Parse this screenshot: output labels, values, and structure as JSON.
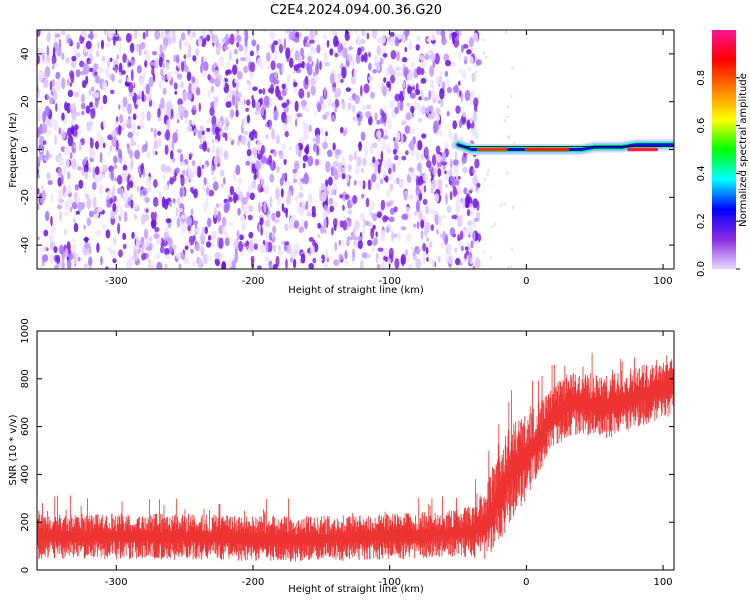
{
  "title": "C2E4.2024.094.00.36.G20",
  "chart_data": [
    {
      "type": "heatmap",
      "xlabel": "Height of straight line (km)",
      "ylabel": "Frequency (Hz)",
      "xlim": [
        -358,
        108
      ],
      "ylim": [
        -50,
        50
      ],
      "x_ticks": [
        -300,
        -200,
        -100,
        0,
        100
      ],
      "y_ticks": [
        -40,
        -20,
        0,
        20,
        40
      ],
      "colorbar": {
        "label": "Normalized spectral amplitude",
        "range": [
          0,
          1
        ],
        "ticks": [
          "0.0",
          "0.2",
          "0.4",
          "0.6",
          "0.8"
        ],
        "colormap": [
          "#e8d8ff",
          "#8a2be2",
          "#0000ff",
          "#00ffff",
          "#00ff00",
          "#ffff00",
          "#ff7f00",
          "#ff0000",
          "#ff1493"
        ]
      },
      "noise_region_x": [
        -358,
        -45
      ],
      "signal_line": {
        "x": [
          -50,
          -40,
          -30,
          -20,
          -10,
          0,
          10,
          20,
          30,
          40,
          50,
          60,
          70,
          80,
          90,
          100,
          108
        ],
        "freq_hz": [
          2,
          0,
          0,
          0,
          0,
          0,
          0,
          0,
          0,
          0,
          1,
          1,
          1,
          2,
          2,
          2,
          2
        ]
      }
    },
    {
      "type": "line",
      "xlabel": "Height of straight line (km)",
      "ylabel": "SNR (10 * v/v)",
      "xlim": [
        -358,
        108
      ],
      "ylim": [
        0,
        1000
      ],
      "x_ticks": [
        -300,
        -200,
        -100,
        0,
        100
      ],
      "y_ticks": [
        0,
        200,
        400,
        600,
        800,
        1000
      ],
      "series": [
        {
          "color": "#ee3333",
          "x": [
            -358,
            -300,
            -250,
            -200,
            -150,
            -100,
            -60,
            -40,
            -30,
            -20,
            -10,
            0,
            10,
            20,
            30,
            40,
            50,
            60,
            70,
            80,
            90,
            100,
            108
          ],
          "mean": [
            140,
            140,
            140,
            130,
            130,
            140,
            150,
            160,
            190,
            310,
            420,
            470,
            560,
            640,
            690,
            700,
            690,
            680,
            710,
            720,
            740,
            760,
            780
          ],
          "spread": [
            80,
            80,
            80,
            80,
            80,
            80,
            80,
            90,
            130,
            170,
            170,
            150,
            120,
            110,
            110,
            110,
            110,
            110,
            110,
            110,
            110,
            110,
            110
          ]
        }
      ]
    }
  ]
}
